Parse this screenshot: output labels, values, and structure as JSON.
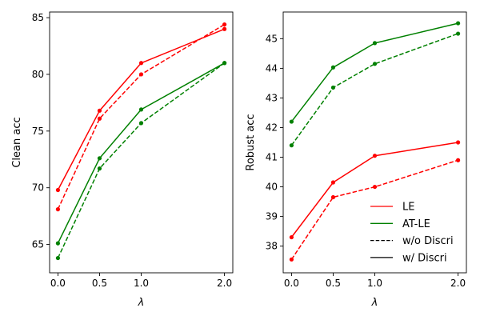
{
  "chart_data": [
    {
      "type": "line",
      "xlabel": "λ",
      "ylabel": "Clean acc",
      "x": [
        0.0,
        0.5,
        1.0,
        2.0
      ],
      "xticks": [
        "0.0",
        "0.5",
        "1.0",
        "2.0"
      ],
      "xlim": [
        -0.1,
        2.1
      ],
      "ylim": [
        62.5,
        85.5
      ],
      "yticks": [
        65,
        70,
        75,
        80,
        85
      ],
      "ytick_labels": [
        "65",
        "70",
        "75",
        "80",
        "85"
      ],
      "grid": false,
      "series": [
        {
          "name": "LE w/ Discri",
          "color": "#ff0000",
          "style": "solid",
          "values": [
            69.8,
            76.8,
            81.0,
            84.0
          ]
        },
        {
          "name": "LE w/o Discri",
          "color": "#ff0000",
          "style": "dashed",
          "values": [
            68.1,
            76.1,
            80.0,
            84.4
          ]
        },
        {
          "name": "AT-LE w/ Discri",
          "color": "#008000",
          "style": "solid",
          "values": [
            65.1,
            72.6,
            76.9,
            81.0
          ]
        },
        {
          "name": "AT-LE w/o Discri",
          "color": "#008000",
          "style": "dashed",
          "values": [
            63.8,
            71.7,
            75.7,
            81.0
          ]
        }
      ]
    },
    {
      "type": "line",
      "xlabel": "λ",
      "ylabel": "Robust acc",
      "x": [
        0.0,
        0.5,
        1.0,
        2.0
      ],
      "xticks": [
        "0.0",
        "0.5",
        "1.0",
        "2.0"
      ],
      "xlim": [
        -0.1,
        2.1
      ],
      "ylim": [
        37.1,
        45.9
      ],
      "yticks": [
        38,
        39,
        40,
        41,
        42,
        43,
        44,
        45
      ],
      "ytick_labels": [
        "38",
        "39",
        "40",
        "41",
        "42",
        "43",
        "44",
        "45"
      ],
      "grid": false,
      "legend": {
        "placement": "bottom-right",
        "entries": [
          {
            "label": "LE",
            "color": "#ff0000",
            "style": "solid"
          },
          {
            "label": "AT-LE",
            "color": "#008000",
            "style": "solid"
          },
          {
            "label": "w/o Discri",
            "color": "#000000",
            "style": "dashed"
          },
          {
            "label": "w/ Discri",
            "color": "#000000",
            "style": "solid"
          }
        ]
      },
      "series": [
        {
          "name": "LE w/ Discri",
          "color": "#ff0000",
          "style": "solid",
          "values": [
            38.3,
            40.15,
            41.05,
            41.5
          ]
        },
        {
          "name": "LE w/o Discri",
          "color": "#ff0000",
          "style": "dashed",
          "values": [
            37.55,
            39.65,
            40.0,
            40.9
          ]
        },
        {
          "name": "AT-LE w/ Discri",
          "color": "#008000",
          "style": "solid",
          "values": [
            42.2,
            44.03,
            44.85,
            45.52
          ]
        },
        {
          "name": "AT-LE w/o Discri",
          "color": "#008000",
          "style": "dashed",
          "values": [
            41.4,
            43.35,
            44.15,
            45.17
          ]
        }
      ]
    }
  ]
}
